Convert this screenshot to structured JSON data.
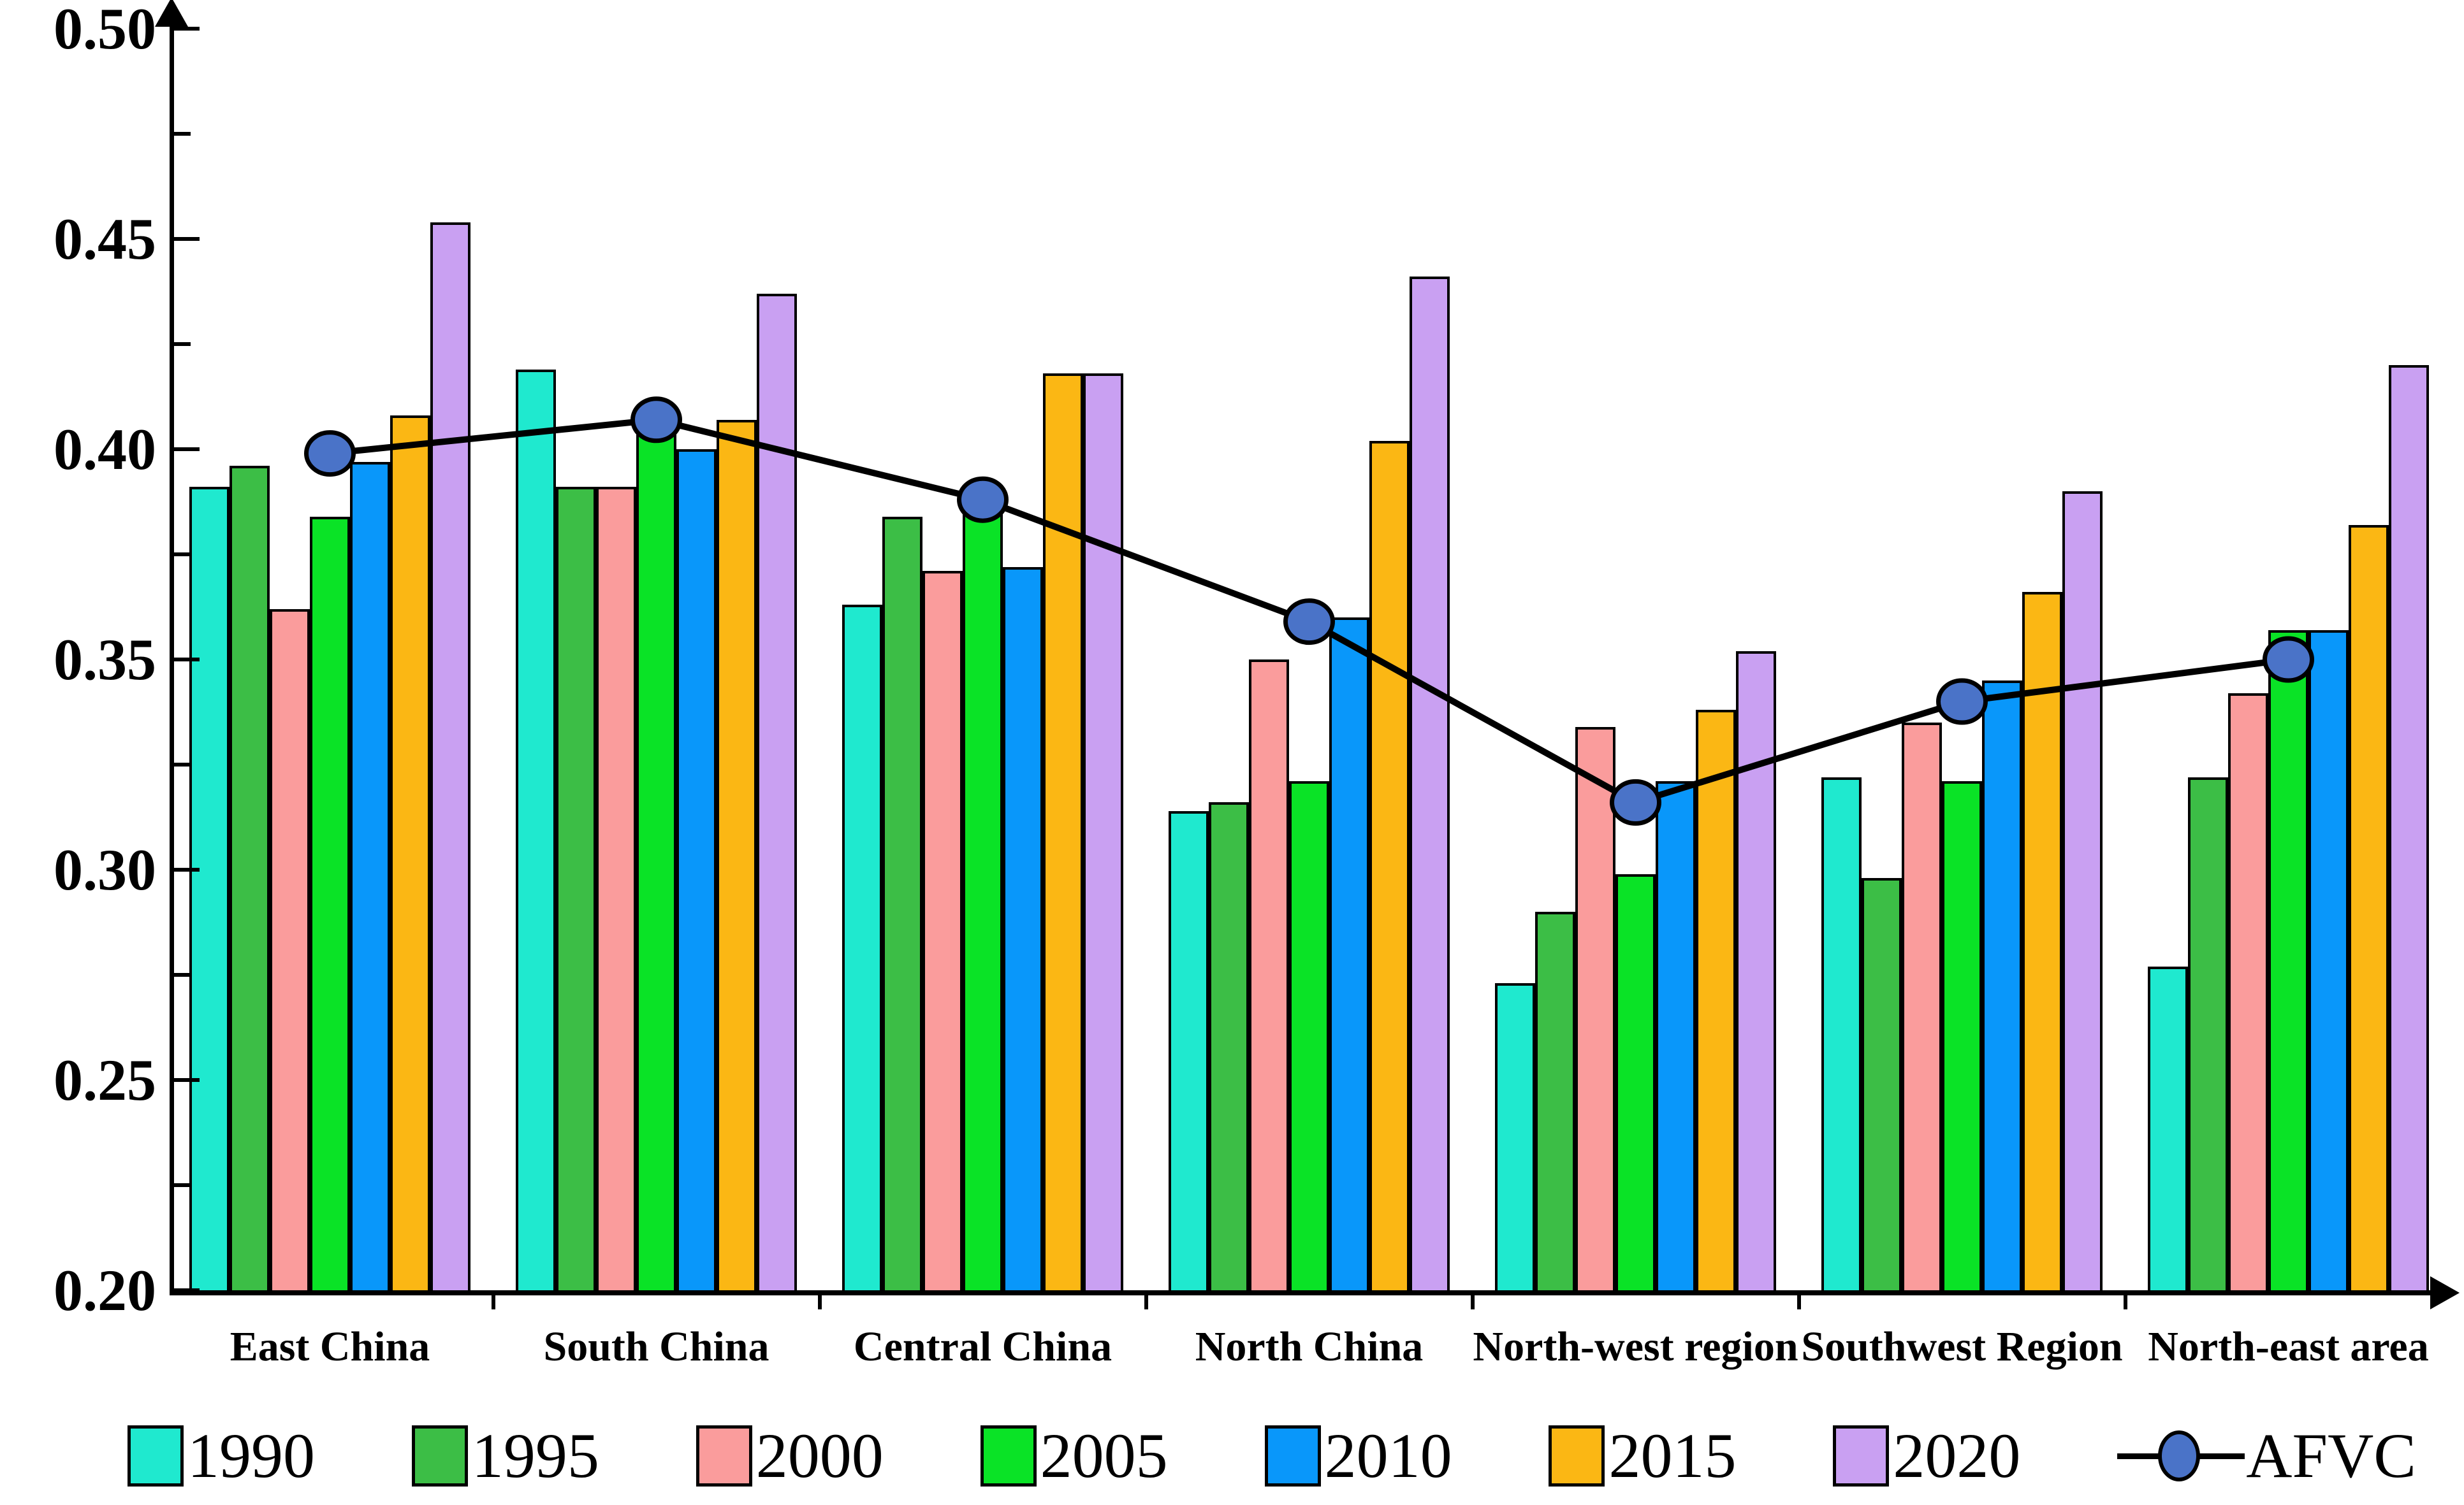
{
  "chart_data": {
    "type": "bar",
    "title": "",
    "xlabel": "",
    "ylabel": "",
    "ylim": [
      0.2,
      0.5
    ],
    "ytick_step": 0.05,
    "yminor_step": 0.025,
    "yticks": [
      "0.50",
      "0.45",
      "0.40",
      "0.35",
      "0.30",
      "0.25",
      "0.20"
    ],
    "grid": false,
    "legend_position": "bottom",
    "categories": [
      "East China",
      "South China",
      "Central China",
      "North China",
      "North-west region",
      "Southwest Region",
      "North-east area"
    ],
    "series": [
      {
        "name": "1990",
        "color": "#1FE9CF",
        "values": [
          0.391,
          0.419,
          0.363,
          0.314,
          0.273,
          0.322,
          0.277
        ]
      },
      {
        "name": "1995",
        "color": "#3CBE46",
        "values": [
          0.396,
          0.391,
          0.384,
          0.316,
          0.29,
          0.298,
          0.322
        ]
      },
      {
        "name": "2000",
        "color": "#FA9C9C",
        "values": [
          0.362,
          0.391,
          0.371,
          0.35,
          0.334,
          0.335,
          0.342
        ]
      },
      {
        "name": "2005",
        "color": "#0AE326",
        "values": [
          0.384,
          0.404,
          0.385,
          0.321,
          0.299,
          0.321,
          0.357
        ]
      },
      {
        "name": "2010",
        "color": "#0997FA",
        "values": [
          0.397,
          0.4,
          0.372,
          0.36,
          0.321,
          0.345,
          0.357
        ]
      },
      {
        "name": "2015",
        "color": "#FBB714",
        "values": [
          0.408,
          0.407,
          0.418,
          0.402,
          0.338,
          0.366,
          0.382
        ]
      },
      {
        "name": "2020",
        "color": "#C9A0F2",
        "values": [
          0.454,
          0.437,
          0.418,
          0.441,
          0.352,
          0.39,
          0.42
        ]
      }
    ],
    "line_series": {
      "name": "AFVC",
      "marker": "circle-marker-icon",
      "marker_fill": "#4A73C8",
      "line_color": "#000000",
      "values": [
        0.399,
        0.407,
        0.388,
        0.359,
        0.316,
        0.34,
        0.35
      ]
    },
    "axis_color": "#000000",
    "background_color": "#FFFFFF"
  }
}
